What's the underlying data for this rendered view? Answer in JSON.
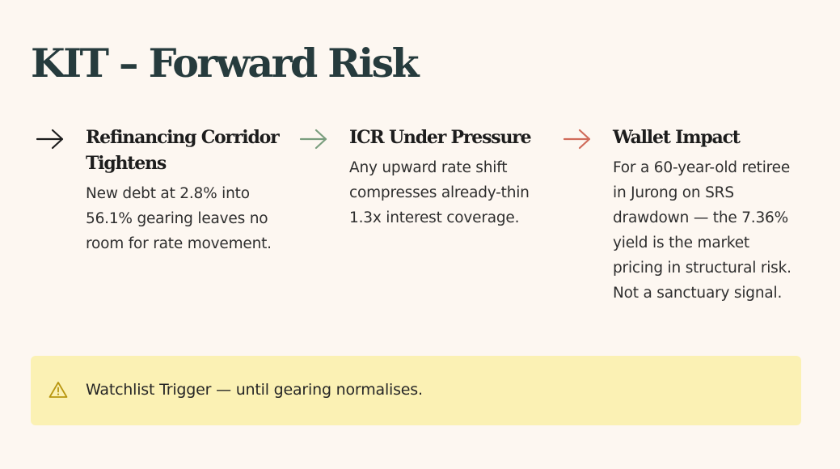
{
  "title": "KIT – Forward Risk",
  "columns": [
    {
      "icon": "arrow-right-icon",
      "icon_color": "#1d1d1d",
      "heading": "Refinancing Corridor Tightens",
      "body": "New debt at 2.8% into 56.1% gearing leaves no room for rate movement."
    },
    {
      "icon": "arrow-right-icon",
      "icon_color": "#7a9e7e",
      "heading": "ICR Under Pressure",
      "body": "Any upward rate shift compresses already-thin 1.3x interest coverage."
    },
    {
      "icon": "arrow-right-icon",
      "icon_color": "#d06b5a",
      "heading": "Wallet Impact",
      "body": "For a 60-year-old retiree in Jurong on SRS drawdown — the 7.36% yield is the market pricing in structural risk. Not a sanctuary signal."
    }
  ],
  "callout": {
    "icon": "warning-icon",
    "icon_color": "#b8960f",
    "background": "#fbf1b4",
    "text": "Watchlist Trigger — until gearing normalises."
  }
}
